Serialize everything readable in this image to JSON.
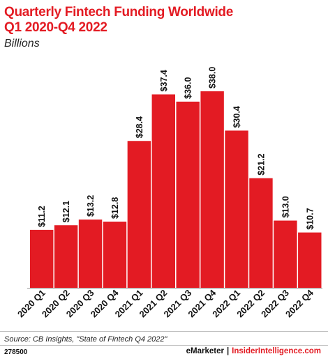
{
  "header": {
    "title_line1": "Quarterly Fintech Funding Worldwide",
    "title_line2": "Q1 2020-Q4 2022",
    "subtitle": "Billions"
  },
  "footer": {
    "source": "Source: CB Insights, \"State of Fintech Q4 2022\"",
    "chart_id": "278500",
    "brand_emarketer": "eMarketer",
    "brand_separator": "|",
    "brand_insider": "InsiderIntelligence.com"
  },
  "colors": {
    "accent": "#e31b23",
    "bar": "#e31b23",
    "text": "#111111",
    "rule": "#bdbdbd"
  },
  "chart_data": {
    "type": "bar",
    "title": "Quarterly Fintech Funding Worldwide Q1 2020-Q4 2022",
    "subtitle": "Billions",
    "xlabel": "",
    "ylabel": "",
    "categories": [
      "2020 Q1",
      "2020 Q2",
      "2020 Q3",
      "2020 Q4",
      "2021 Q1",
      "2021 Q2",
      "2021 Q3",
      "2021 Q4",
      "2022 Q1",
      "2022 Q2",
      "2022 Q3",
      "2022 Q4"
    ],
    "values": [
      11.2,
      12.1,
      13.2,
      12.8,
      28.4,
      37.4,
      36.0,
      38.0,
      30.4,
      21.2,
      13.0,
      10.7
    ],
    "value_labels": [
      "$11.2",
      "$12.1",
      "$13.2",
      "$12.8",
      "$28.4",
      "$37.4",
      "$36.0",
      "$38.0",
      "$30.4",
      "$21.2",
      "$13.0",
      "$10.7"
    ],
    "ylim": [
      0,
      38
    ],
    "grid": false,
    "legend": "none"
  }
}
